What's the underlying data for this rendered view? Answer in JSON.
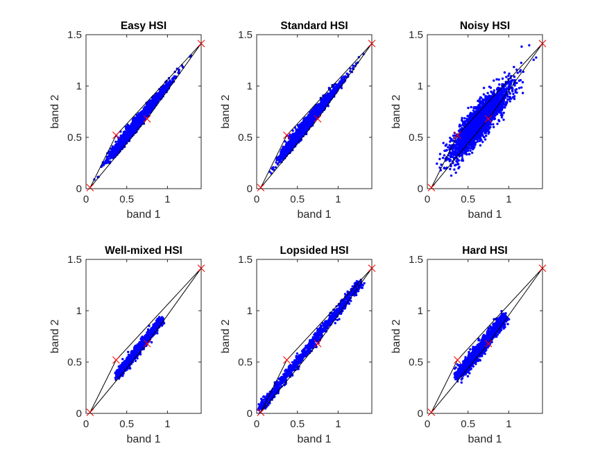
{
  "chart_data": [
    {
      "type": "scatter",
      "title": "Easy HSI",
      "xlabel": "band 1",
      "ylabel": "band 2",
      "xlim": [
        0,
        1.414
      ],
      "ylim": [
        0,
        1.5
      ],
      "xticks": [
        "0",
        "0.5",
        "1"
      ],
      "yticks": [
        "0",
        "0.5",
        "1",
        "1.5"
      ],
      "endmembers": [
        [
          0.05,
          0.01
        ],
        [
          0.37,
          0.52
        ],
        [
          0.75,
          0.68
        ],
        [
          1.414,
          1.414
        ]
      ],
      "hull": [
        [
          0.05,
          0.01
        ],
        [
          0.37,
          0.52
        ],
        [
          1.414,
          1.414
        ],
        [
          0.75,
          0.68
        ]
      ],
      "points": {
        "spread_fraction": 1.0,
        "noise": 0.006,
        "count": 2600
      },
      "colors": {
        "points": "#0000ff",
        "endmembers": "#ff0000",
        "hull": "#000000"
      }
    },
    {
      "type": "scatter",
      "title": "Standard HSI",
      "xlabel": "band 1",
      "ylabel": "band 2",
      "xlim": [
        0,
        1.414
      ],
      "ylim": [
        0,
        1.5
      ],
      "xticks": [
        "0",
        "0.5",
        "1"
      ],
      "yticks": [
        "0",
        "0.5",
        "1",
        "1.5"
      ],
      "endmembers": [
        [
          0.05,
          0.01
        ],
        [
          0.37,
          0.52
        ],
        [
          0.75,
          0.68
        ],
        [
          1.414,
          1.414
        ]
      ],
      "hull": [
        [
          0.05,
          0.01
        ],
        [
          0.37,
          0.52
        ],
        [
          1.414,
          1.414
        ],
        [
          0.75,
          0.68
        ]
      ],
      "points": {
        "spread_fraction": 0.88,
        "noise": 0.012,
        "count": 2600
      },
      "colors": {
        "points": "#0000ff",
        "endmembers": "#ff0000",
        "hull": "#000000"
      }
    },
    {
      "type": "scatter",
      "title": "Noisy HSI",
      "xlabel": "band 1",
      "ylabel": "band 2",
      "xlim": [
        0,
        1.414
      ],
      "ylim": [
        0,
        1.5
      ],
      "xticks": [
        "0",
        "0.5",
        "1"
      ],
      "yticks": [
        "0",
        "0.5",
        "1",
        "1.5"
      ],
      "endmembers": [
        [
          0.05,
          0.01
        ],
        [
          0.37,
          0.52
        ],
        [
          0.75,
          0.68
        ],
        [
          1.414,
          1.414
        ]
      ],
      "hull": [
        [
          0.05,
          0.01
        ],
        [
          0.37,
          0.52
        ],
        [
          1.414,
          1.414
        ],
        [
          0.75,
          0.68
        ]
      ],
      "points": {
        "spread_fraction": 0.9,
        "noise": 0.055,
        "count": 2600
      },
      "colors": {
        "points": "#0000ff",
        "endmembers": "#ff0000",
        "hull": "#000000"
      }
    },
    {
      "type": "scatter",
      "title": "Well-mixed HSI",
      "xlabel": "band 1",
      "ylabel": "band 2",
      "xlim": [
        0,
        1.414
      ],
      "ylim": [
        0,
        1.5
      ],
      "xticks": [
        "0",
        "0.5",
        "1"
      ],
      "yticks": [
        "0",
        "0.5",
        "1",
        "1.5"
      ],
      "endmembers": [
        [
          0.05,
          0.01
        ],
        [
          0.37,
          0.52
        ],
        [
          0.75,
          0.68
        ],
        [
          1.414,
          1.414
        ]
      ],
      "hull": [
        [
          0.05,
          0.01
        ],
        [
          0.37,
          0.52
        ],
        [
          1.414,
          1.414
        ],
        [
          0.75,
          0.68
        ]
      ],
      "points": {
        "x_range": [
          0.38,
          0.93
        ],
        "slope_center": [
          0.64,
          0.69
        ],
        "spread_fraction": 0.35,
        "noise": 0.018,
        "count": 1400
      },
      "colors": {
        "points": "#0000ff",
        "endmembers": "#ff0000",
        "hull": "#000000"
      }
    },
    {
      "type": "scatter",
      "title": "Lopsided HSI",
      "xlabel": "band 1",
      "ylabel": "band 2",
      "xlim": [
        0,
        1.414
      ],
      "ylim": [
        0,
        1.5
      ],
      "xticks": [
        "0",
        "0.5",
        "1"
      ],
      "yticks": [
        "0",
        "0.5",
        "1",
        "1.5"
      ],
      "endmembers": [
        [
          0.05,
          0.01
        ],
        [
          0.37,
          0.52
        ],
        [
          0.75,
          0.68
        ],
        [
          1.414,
          1.414
        ]
      ],
      "hull": [
        [
          0.05,
          0.01
        ],
        [
          0.37,
          0.52
        ],
        [
          1.414,
          1.414
        ],
        [
          0.75,
          0.68
        ]
      ],
      "points": {
        "x_range": [
          0.05,
          1.28
        ],
        "spread_fraction": 0.45,
        "noise": 0.02,
        "count": 1200
      },
      "colors": {
        "points": "#0000ff",
        "endmembers": "#ff0000",
        "hull": "#000000"
      }
    },
    {
      "type": "scatter",
      "title": "Hard HSI",
      "xlabel": "band 1",
      "ylabel": "band 2",
      "xlim": [
        0,
        1.414
      ],
      "ylim": [
        0,
        1.5
      ],
      "xticks": [
        "0",
        "0.5",
        "1"
      ],
      "yticks": [
        "0",
        "0.5",
        "1",
        "1.5"
      ],
      "endmembers": [
        [
          0.05,
          0.01
        ],
        [
          0.37,
          0.52
        ],
        [
          0.75,
          0.68
        ],
        [
          1.414,
          1.414
        ]
      ],
      "hull": [
        [
          0.05,
          0.01
        ],
        [
          0.37,
          0.52
        ],
        [
          1.414,
          1.414
        ],
        [
          0.75,
          0.68
        ]
      ],
      "points": {
        "x_range": [
          0.38,
          0.95
        ],
        "slope_center": [
          0.64,
          0.7
        ],
        "spread_fraction": 0.6,
        "noise": 0.025,
        "count": 1800
      },
      "colors": {
        "points": "#0000ff",
        "endmembers": "#ff0000",
        "hull": "#000000"
      }
    }
  ]
}
